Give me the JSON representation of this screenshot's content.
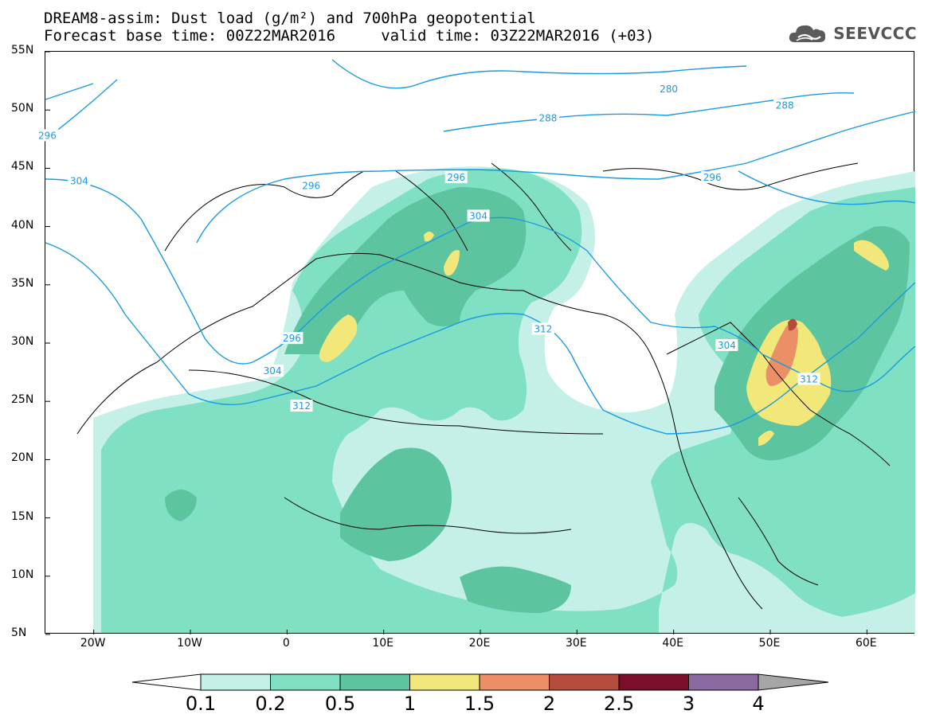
{
  "title": {
    "line1": "DREAM8-assim: Dust load (g/m²) and 700hPa geopotential",
    "line2": "Forecast base time: 00Z22MAR2016     valid time: 03Z22MAR2016 (+03)"
  },
  "logo": {
    "text": "SEEVCCC",
    "icon": "cloud-icon"
  },
  "map": {
    "lon_range": [
      -25,
      65
    ],
    "lat_range": [
      5,
      55
    ],
    "lat_ticks": [
      {
        "value": 55,
        "label": "55N"
      },
      {
        "value": 50,
        "label": "50N"
      },
      {
        "value": 45,
        "label": "45N"
      },
      {
        "value": 40,
        "label": "40N"
      },
      {
        "value": 35,
        "label": "35N"
      },
      {
        "value": 30,
        "label": "30N"
      },
      {
        "value": 25,
        "label": "25N"
      },
      {
        "value": 20,
        "label": "20N"
      },
      {
        "value": 15,
        "label": "15N"
      },
      {
        "value": 10,
        "label": "10N"
      },
      {
        "value": 5,
        "label": "5N"
      }
    ],
    "lon_ticks": [
      {
        "value": -20,
        "label": "20W"
      },
      {
        "value": -10,
        "label": "10W"
      },
      {
        "value": 0,
        "label": "0"
      },
      {
        "value": 10,
        "label": "10E"
      },
      {
        "value": 20,
        "label": "20E"
      },
      {
        "value": 30,
        "label": "30E"
      },
      {
        "value": 40,
        "label": "40E"
      },
      {
        "value": 50,
        "label": "50E"
      },
      {
        "value": 60,
        "label": "60E"
      }
    ],
    "contour_color": "#1a9be0",
    "contour_labels": [
      {
        "text": "280",
        "lon": 39.5,
        "lat": 51.8
      },
      {
        "text": "288",
        "lon": 51.5,
        "lat": 50.4
      },
      {
        "text": "288",
        "lon": 27,
        "lat": 49.3
      },
      {
        "text": "296",
        "lon": -24.8,
        "lat": 47.8
      },
      {
        "text": "296",
        "lon": 2.5,
        "lat": 43.5
      },
      {
        "text": "296",
        "lon": 17.5,
        "lat": 44.2
      },
      {
        "text": "296",
        "lon": 44,
        "lat": 44.2
      },
      {
        "text": "296",
        "lon": 0.5,
        "lat": 30.4
      },
      {
        "text": "304",
        "lon": -21.5,
        "lat": 43.9
      },
      {
        "text": "304",
        "lon": 19.8,
        "lat": 40.9
      },
      {
        "text": "304",
        "lon": 45.5,
        "lat": 29.8
      },
      {
        "text": "304",
        "lon": -1.5,
        "lat": 27.6
      },
      {
        "text": "312",
        "lon": 26.5,
        "lat": 31.2
      },
      {
        "text": "312",
        "lon": 54,
        "lat": 26.9
      },
      {
        "text": "312",
        "lon": 1.5,
        "lat": 24.6
      }
    ]
  },
  "legend": {
    "levels": [
      "0.1",
      "0.2",
      "0.5",
      "1",
      "1.5",
      "2",
      "2.5",
      "3",
      "4"
    ],
    "colors": [
      "#c5f0e8",
      "#7fe0c4",
      "#5cc49e",
      "#f2e87a",
      "#eb8f66",
      "#b54b3d",
      "#7a0e2b",
      "#8a6aa0",
      "#a6a6a6"
    ],
    "under_color": "#ffffff",
    "over_color": "#a6a6a6"
  }
}
